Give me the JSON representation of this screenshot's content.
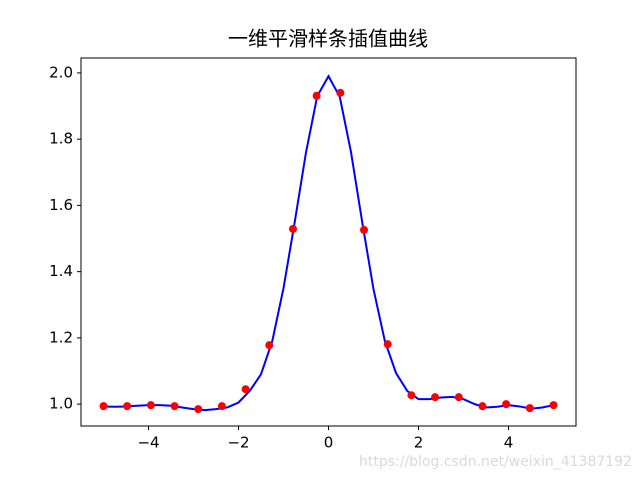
{
  "chart_data": {
    "type": "line",
    "title": "一维平滑样条插值曲线",
    "xlim": [
      -5.5,
      5.5
    ],
    "ylim": [
      0.934,
      2.045
    ],
    "xticks": [
      {
        "value": -4,
        "label": "−4"
      },
      {
        "value": -2,
        "label": "−2"
      },
      0,
      2,
      4
    ],
    "yticks": [
      {
        "value": 1,
        "label": "1.0"
      },
      1.2,
      1.4,
      1.6,
      1.8,
      {
        "value": 2,
        "label": "2.0"
      }
    ],
    "series": [
      {
        "mark": "line",
        "color": "#0000ff",
        "x": [
          -5,
          -4.75,
          -4.5,
          -4.25,
          -4,
          -3.75,
          -3.5,
          -3.25,
          -3,
          -2.75,
          -2.5,
          -2.25,
          -2,
          -1.75,
          -1.5,
          -1.25,
          -1,
          -0.75,
          -0.5,
          -0.25,
          0,
          0.25,
          0.5,
          0.75,
          1,
          1.25,
          1.5,
          1.75,
          2,
          2.25,
          2.5,
          2.75,
          3,
          3.25,
          3.5,
          3.75,
          4,
          4.25,
          4.5,
          4.75,
          5
        ],
        "values": [
          0.993,
          0.992,
          0.993,
          0.995,
          0.997,
          0.997,
          0.995,
          0.99,
          0.985,
          0.982,
          0.985,
          0.99,
          1.005,
          1.04,
          1.09,
          1.19,
          1.35,
          1.55,
          1.76,
          1.93,
          1.99,
          1.928,
          1.761,
          1.549,
          1.347,
          1.192,
          1.094,
          1.04,
          1.015,
          1.015,
          1.02,
          1.022,
          1.015,
          1.0,
          0.99,
          0.992,
          0.997,
          0.993,
          0.986,
          0.99,
          0.997
        ]
      },
      {
        "mark": "point",
        "color": "#ff0000",
        "x": [
          -5,
          -4.474,
          -3.947,
          -3.421,
          -2.895,
          -2.368,
          -1.842,
          -1.316,
          -0.789,
          -0.263,
          0.263,
          0.789,
          1.316,
          1.842,
          2.368,
          2.895,
          3.421,
          3.947,
          4.474,
          5
        ],
        "values": [
          0.994,
          0.994,
          0.997,
          0.994,
          0.985,
          0.994,
          1.045,
          1.178,
          1.529,
          1.931,
          1.94,
          1.526,
          1.181,
          1.027,
          1.021,
          1.021,
          0.994,
          1.0,
          0.988,
          0.997
        ]
      }
    ],
    "watermark": "https://blog.csdn.net/weixin_41387192"
  }
}
